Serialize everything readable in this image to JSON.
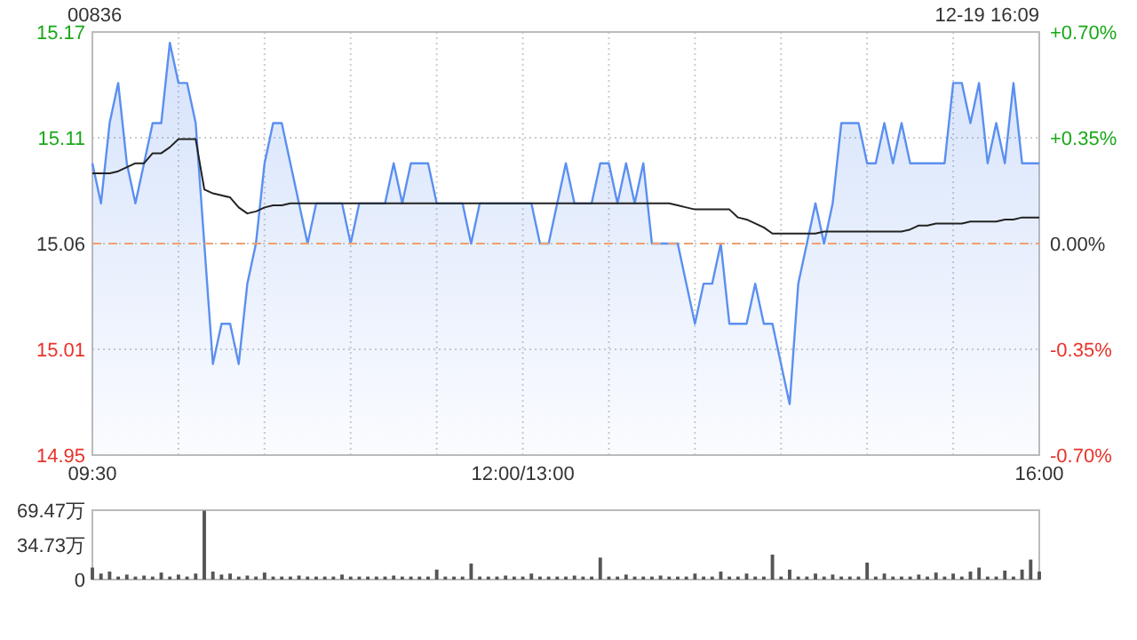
{
  "chart_data": [
    {
      "type": "area",
      "title": "00836",
      "annotations": [
        "12-19 16:09"
      ],
      "categories": [
        "09:30",
        null,
        null,
        null,
        null,
        null,
        null,
        null,
        null,
        null,
        null,
        null,
        null,
        null,
        null,
        null,
        null,
        null,
        null,
        null,
        null,
        null,
        null,
        null,
        null,
        null,
        null,
        null,
        null,
        null,
        null,
        null,
        null,
        null,
        null,
        null,
        null,
        null,
        null,
        null,
        null,
        null,
        null,
        null,
        null,
        null,
        null,
        null,
        null,
        null,
        "12:00/13:00",
        null,
        null,
        null,
        null,
        null,
        null,
        null,
        null,
        null,
        null,
        null,
        null,
        null,
        null,
        null,
        null,
        null,
        null,
        null,
        null,
        null,
        null,
        null,
        null,
        null,
        null,
        null,
        null,
        null,
        null,
        null,
        null,
        null,
        null,
        null,
        null,
        null,
        null,
        null,
        null,
        null,
        null,
        null,
        null,
        null,
        null,
        null,
        null,
        null,
        null,
        null,
        null,
        null,
        null,
        null,
        null,
        null,
        null,
        null,
        "16:00"
      ],
      "ylim": [
        14.9546,
        15.1654
      ],
      "yticks": [
        {
          "value": 14.9546,
          "label": "14.95"
        },
        {
          "value": 15.0073,
          "label": "15.01"
        },
        15.06,
        {
          "value": 15.1127,
          "label": "15.11"
        },
        {
          "value": 15.1654,
          "label": "15.17"
        }
      ],
      "y2lim": [
        -0.7,
        0.7
      ],
      "y2ticks": [
        {
          "value": -0.7,
          "label": "-0.70%"
        },
        {
          "value": -0.35,
          "label": "-0.35%"
        },
        {
          "value": 0,
          "label": "0.00%"
        },
        {
          "value": 0.35,
          "label": "+0.35%"
        },
        {
          "value": 0.7,
          "label": "+0.70%"
        }
      ],
      "grid": true,
      "ref_lines": [
        {
          "axis": "y",
          "value": 15.06,
          "color": "#f0a070",
          "line_style": "dashed"
        }
      ],
      "series": [
        {
          "color": "#5b8ff0",
          "values": [
            15.1,
            15.08,
            15.12,
            15.14,
            15.1,
            15.08,
            15.1,
            15.12,
            15.12,
            15.16,
            15.14,
            15.14,
            15.12,
            15.06,
            15,
            15.02,
            15.02,
            15,
            15.04,
            15.06,
            15.1,
            15.12,
            15.12,
            15.1,
            15.08,
            15.06,
            15.08,
            15.08,
            15.08,
            15.08,
            15.06,
            15.08,
            15.08,
            15.08,
            15.08,
            15.1,
            15.08,
            15.1,
            15.1,
            15.1,
            15.08,
            15.08,
            15.08,
            15.08,
            15.06,
            15.08,
            15.08,
            15.08,
            15.08,
            15.08,
            15.08,
            15.08,
            15.06,
            15.06,
            15.08,
            15.1,
            15.08,
            15.08,
            15.08,
            15.1,
            15.1,
            15.08,
            15.1,
            15.08,
            15.1,
            15.06,
            15.06,
            15.06,
            15.06,
            15.04,
            15.02,
            15.04,
            15.04,
            15.06,
            15.02,
            15.02,
            15.02,
            15.04,
            15.02,
            15.02,
            15,
            14.98,
            15.04,
            15.06,
            15.08,
            15.06,
            15.08,
            15.12,
            15.12,
            15.12,
            15.1,
            15.1,
            15.12,
            15.1,
            15.12,
            15.1,
            15.1,
            15.1,
            15.1,
            15.1,
            15.14,
            15.14,
            15.12,
            15.14,
            15.1,
            15.12,
            15.1,
            15.14,
            15.1,
            15.1,
            15.1
          ]
        },
        {
          "type": "line",
          "color": "#222222",
          "values": [
            15.095,
            15.095,
            15.095,
            15.096,
            15.098,
            15.1,
            15.1,
            15.105,
            15.105,
            15.108,
            15.112,
            15.112,
            15.112,
            15.087,
            15.085,
            15.084,
            15.083,
            15.078,
            15.075,
            15.076,
            15.078,
            15.079,
            15.079,
            15.08,
            15.08,
            15.08,
            15.08,
            15.08,
            15.08,
            15.08,
            15.08,
            15.08,
            15.08,
            15.08,
            15.08,
            15.08,
            15.08,
            15.08,
            15.08,
            15.08,
            15.08,
            15.08,
            15.08,
            15.08,
            15.08,
            15.08,
            15.08,
            15.08,
            15.08,
            15.08,
            15.08,
            15.08,
            15.08,
            15.08,
            15.08,
            15.08,
            15.08,
            15.08,
            15.08,
            15.08,
            15.08,
            15.08,
            15.08,
            15.08,
            15.08,
            15.08,
            15.08,
            15.08,
            15.079,
            15.078,
            15.077,
            15.077,
            15.077,
            15.077,
            15.077,
            15.073,
            15.072,
            15.07,
            15.068,
            15.065,
            15.065,
            15.065,
            15.065,
            15.065,
            15.065,
            15.066,
            15.066,
            15.066,
            15.066,
            15.066,
            15.066,
            15.066,
            15.066,
            15.066,
            15.066,
            15.067,
            15.069,
            15.069,
            15.07,
            15.07,
            15.07,
            15.07,
            15.071,
            15.071,
            15.071,
            15.071,
            15.072,
            15.072,
            15.073,
            15.073,
            15.073
          ]
        }
      ]
    },
    {
      "type": "bar",
      "color": "#555555",
      "tick_labels": "y",
      "categories": [
        null,
        null,
        null,
        null,
        null,
        null,
        null,
        null,
        null,
        null,
        null,
        null,
        null,
        null,
        null,
        null,
        null,
        null,
        null,
        null,
        null,
        null,
        null,
        null,
        null,
        null,
        null,
        null,
        null,
        null,
        null,
        null,
        null,
        null,
        null,
        null,
        null,
        null,
        null,
        null,
        null,
        null,
        null,
        null,
        null,
        null,
        null,
        null,
        null,
        null,
        null,
        null,
        null,
        null,
        null,
        null,
        null,
        null,
        null,
        null,
        null,
        null,
        null,
        null,
        null,
        null,
        null,
        null,
        null,
        null,
        null,
        null,
        null,
        null,
        null,
        null,
        null,
        null,
        null,
        null,
        null,
        null,
        null,
        null,
        null,
        null,
        null,
        null,
        null,
        null,
        null,
        null,
        null,
        null,
        null,
        null,
        null,
        null,
        null,
        null,
        null,
        null,
        null,
        null,
        null,
        null,
        null,
        null,
        null,
        null,
        null
      ],
      "ylim": [
        0,
        69.47
      ],
      "yticks": [
        0,
        {
          "value": 34.73,
          "label": "34.73万"
        },
        {
          "value": 69.47,
          "label": "69.47万"
        }
      ],
      "values": [
        12,
        6,
        8,
        3,
        5,
        3,
        4,
        3,
        7,
        3,
        5,
        3,
        6,
        69,
        8,
        5,
        6,
        3,
        4,
        3,
        7,
        3,
        3,
        3,
        4,
        3,
        3,
        3,
        3,
        5,
        3,
        3,
        3,
        3,
        3,
        4,
        3,
        3,
        3,
        3,
        10,
        3,
        3,
        3,
        16,
        3,
        3,
        3,
        4,
        3,
        3,
        6,
        3,
        3,
        3,
        3,
        4,
        3,
        3,
        22,
        3,
        3,
        5,
        3,
        3,
        3,
        4,
        3,
        3,
        3,
        6,
        3,
        3,
        8,
        3,
        3,
        6,
        3,
        3,
        25,
        3,
        10,
        3,
        3,
        6,
        3,
        5,
        3,
        3,
        3,
        17,
        3,
        6,
        3,
        3,
        3,
        5,
        3,
        7,
        3,
        6,
        3,
        8,
        12,
        3,
        3,
        9,
        3,
        10,
        20,
        8
      ]
    }
  ]
}
